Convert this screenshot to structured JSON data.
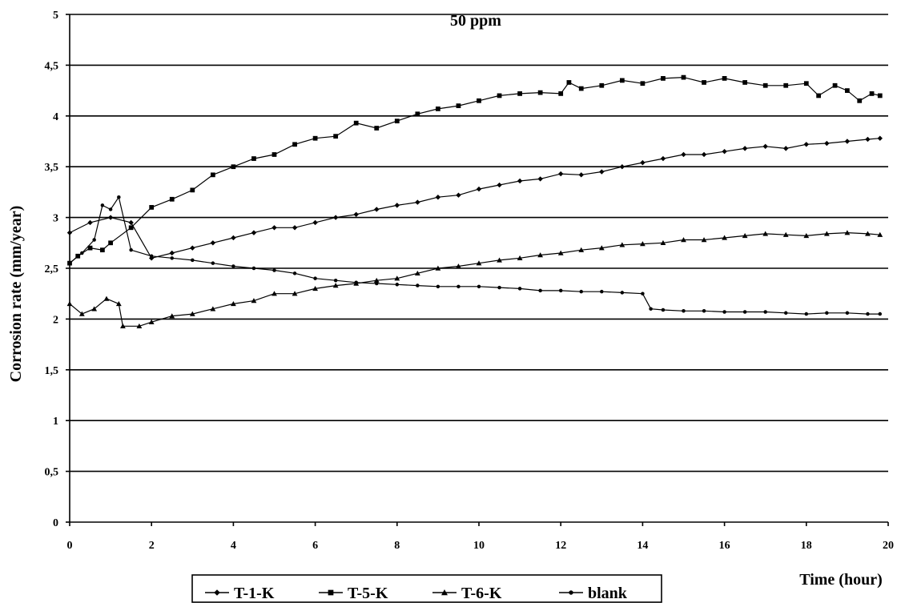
{
  "chart_data": {
    "type": "line",
    "title": "50 ppm",
    "xlabel": "Time (hour)",
    "ylabel": "Corrosion rate (mm/year)",
    "xlim": [
      0,
      20
    ],
    "ylim": [
      0,
      5
    ],
    "x_ticks": [
      "0",
      "2",
      "4",
      "6",
      "8",
      "10",
      "12",
      "14",
      "16",
      "18",
      "20"
    ],
    "y_ticks": [
      "0",
      "0,5",
      "1",
      "1,5",
      "2",
      "2,5",
      "3",
      "3,5",
      "4",
      "4,5",
      "5"
    ],
    "grid": "horizontal",
    "legend_position": "bottom",
    "series": [
      {
        "name": "T-1-K",
        "marker": "diamond",
        "points": [
          [
            0,
            2.85
          ],
          [
            0.5,
            2.95
          ],
          [
            1,
            3.0
          ],
          [
            1.5,
            2.95
          ],
          [
            2,
            2.6
          ],
          [
            2.5,
            2.65
          ],
          [
            3,
            2.7
          ],
          [
            3.5,
            2.75
          ],
          [
            4,
            2.8
          ],
          [
            4.5,
            2.85
          ],
          [
            5,
            2.9
          ],
          [
            5.5,
            2.9
          ],
          [
            6,
            2.95
          ],
          [
            6.5,
            3.0
          ],
          [
            7,
            3.03
          ],
          [
            7.5,
            3.08
          ],
          [
            8,
            3.12
          ],
          [
            8.5,
            3.15
          ],
          [
            9,
            3.2
          ],
          [
            9.5,
            3.22
          ],
          [
            10,
            3.28
          ],
          [
            10.5,
            3.32
          ],
          [
            11,
            3.36
          ],
          [
            11.5,
            3.38
          ],
          [
            12,
            3.43
          ],
          [
            12.5,
            3.42
          ],
          [
            13,
            3.45
          ],
          [
            13.5,
            3.5
          ],
          [
            14,
            3.54
          ],
          [
            14.5,
            3.58
          ],
          [
            15,
            3.62
          ],
          [
            15.5,
            3.62
          ],
          [
            16,
            3.65
          ],
          [
            16.5,
            3.68
          ],
          [
            17,
            3.7
          ],
          [
            17.5,
            3.68
          ],
          [
            18,
            3.72
          ],
          [
            18.5,
            3.73
          ],
          [
            19,
            3.75
          ],
          [
            19.5,
            3.77
          ],
          [
            19.8,
            3.78
          ]
        ]
      },
      {
        "name": "T-5-K",
        "marker": "square",
        "points": [
          [
            0,
            2.55
          ],
          [
            0.2,
            2.62
          ],
          [
            0.5,
            2.7
          ],
          [
            0.8,
            2.68
          ],
          [
            1,
            2.75
          ],
          [
            1.5,
            2.9
          ],
          [
            2,
            3.1
          ],
          [
            2.5,
            3.18
          ],
          [
            3,
            3.27
          ],
          [
            3.5,
            3.42
          ],
          [
            4,
            3.5
          ],
          [
            4.5,
            3.58
          ],
          [
            5,
            3.62
          ],
          [
            5.5,
            3.72
          ],
          [
            6,
            3.78
          ],
          [
            6.5,
            3.8
          ],
          [
            7,
            3.93
          ],
          [
            7.5,
            3.88
          ],
          [
            8,
            3.95
          ],
          [
            8.5,
            4.02
          ],
          [
            9,
            4.07
          ],
          [
            9.5,
            4.1
          ],
          [
            10,
            4.15
          ],
          [
            10.5,
            4.2
          ],
          [
            11,
            4.22
          ],
          [
            11.5,
            4.23
          ],
          [
            12,
            4.22
          ],
          [
            12.2,
            4.33
          ],
          [
            12.5,
            4.27
          ],
          [
            13,
            4.3
          ],
          [
            13.5,
            4.35
          ],
          [
            14,
            4.32
          ],
          [
            14.5,
            4.37
          ],
          [
            15,
            4.38
          ],
          [
            15.5,
            4.33
          ],
          [
            16,
            4.37
          ],
          [
            16.5,
            4.33
          ],
          [
            17,
            4.3
          ],
          [
            17.5,
            4.3
          ],
          [
            18,
            4.32
          ],
          [
            18.3,
            4.2
          ],
          [
            18.7,
            4.3
          ],
          [
            19,
            4.25
          ],
          [
            19.3,
            4.15
          ],
          [
            19.6,
            4.22
          ],
          [
            19.8,
            4.2
          ]
        ]
      },
      {
        "name": "T-6-K",
        "marker": "triangle",
        "points": [
          [
            0,
            2.15
          ],
          [
            0.3,
            2.05
          ],
          [
            0.6,
            2.1
          ],
          [
            0.9,
            2.2
          ],
          [
            1.2,
            2.15
          ],
          [
            1.3,
            1.93
          ],
          [
            1.7,
            1.93
          ],
          [
            2,
            1.97
          ],
          [
            2.5,
            2.03
          ],
          [
            3,
            2.05
          ],
          [
            3.5,
            2.1
          ],
          [
            4,
            2.15
          ],
          [
            4.5,
            2.18
          ],
          [
            5,
            2.25
          ],
          [
            5.5,
            2.25
          ],
          [
            6,
            2.3
          ],
          [
            6.5,
            2.33
          ],
          [
            7,
            2.35
          ],
          [
            7.5,
            2.38
          ],
          [
            8,
            2.4
          ],
          [
            8.5,
            2.45
          ],
          [
            9,
            2.5
          ],
          [
            9.5,
            2.52
          ],
          [
            10,
            2.55
          ],
          [
            10.5,
            2.58
          ],
          [
            11,
            2.6
          ],
          [
            11.5,
            2.63
          ],
          [
            12,
            2.65
          ],
          [
            12.5,
            2.68
          ],
          [
            13,
            2.7
          ],
          [
            13.5,
            2.73
          ],
          [
            14,
            2.74
          ],
          [
            14.5,
            2.75
          ],
          [
            15,
            2.78
          ],
          [
            15.5,
            2.78
          ],
          [
            16,
            2.8
          ],
          [
            16.5,
            2.82
          ],
          [
            17,
            2.84
          ],
          [
            17.5,
            2.83
          ],
          [
            18,
            2.82
          ],
          [
            18.5,
            2.84
          ],
          [
            19,
            2.85
          ],
          [
            19.5,
            2.84
          ],
          [
            19.8,
            2.83
          ]
        ]
      },
      {
        "name": "blank",
        "marker": "circle",
        "points": [
          [
            0,
            2.55
          ],
          [
            0.3,
            2.65
          ],
          [
            0.6,
            2.78
          ],
          [
            0.8,
            3.12
          ],
          [
            1,
            3.08
          ],
          [
            1.2,
            3.2
          ],
          [
            1.5,
            2.68
          ],
          [
            2,
            2.62
          ],
          [
            2.5,
            2.6
          ],
          [
            3,
            2.58
          ],
          [
            3.5,
            2.55
          ],
          [
            4,
            2.52
          ],
          [
            4.5,
            2.5
          ],
          [
            5,
            2.48
          ],
          [
            5.5,
            2.45
          ],
          [
            6,
            2.4
          ],
          [
            6.5,
            2.38
          ],
          [
            7,
            2.36
          ],
          [
            7.5,
            2.35
          ],
          [
            8,
            2.34
          ],
          [
            8.5,
            2.33
          ],
          [
            9,
            2.32
          ],
          [
            9.5,
            2.32
          ],
          [
            10,
            2.32
          ],
          [
            10.5,
            2.31
          ],
          [
            11,
            2.3
          ],
          [
            11.5,
            2.28
          ],
          [
            12,
            2.28
          ],
          [
            12.5,
            2.27
          ],
          [
            13,
            2.27
          ],
          [
            13.5,
            2.26
          ],
          [
            14,
            2.25
          ],
          [
            14.2,
            2.1
          ],
          [
            14.5,
            2.09
          ],
          [
            15,
            2.08
          ],
          [
            15.5,
            2.08
          ],
          [
            16,
            2.07
          ],
          [
            16.5,
            2.07
          ],
          [
            17,
            2.07
          ],
          [
            17.5,
            2.06
          ],
          [
            18,
            2.05
          ],
          [
            18.5,
            2.06
          ],
          [
            19,
            2.06
          ],
          [
            19.5,
            2.05
          ],
          [
            19.8,
            2.05
          ]
        ]
      }
    ]
  }
}
